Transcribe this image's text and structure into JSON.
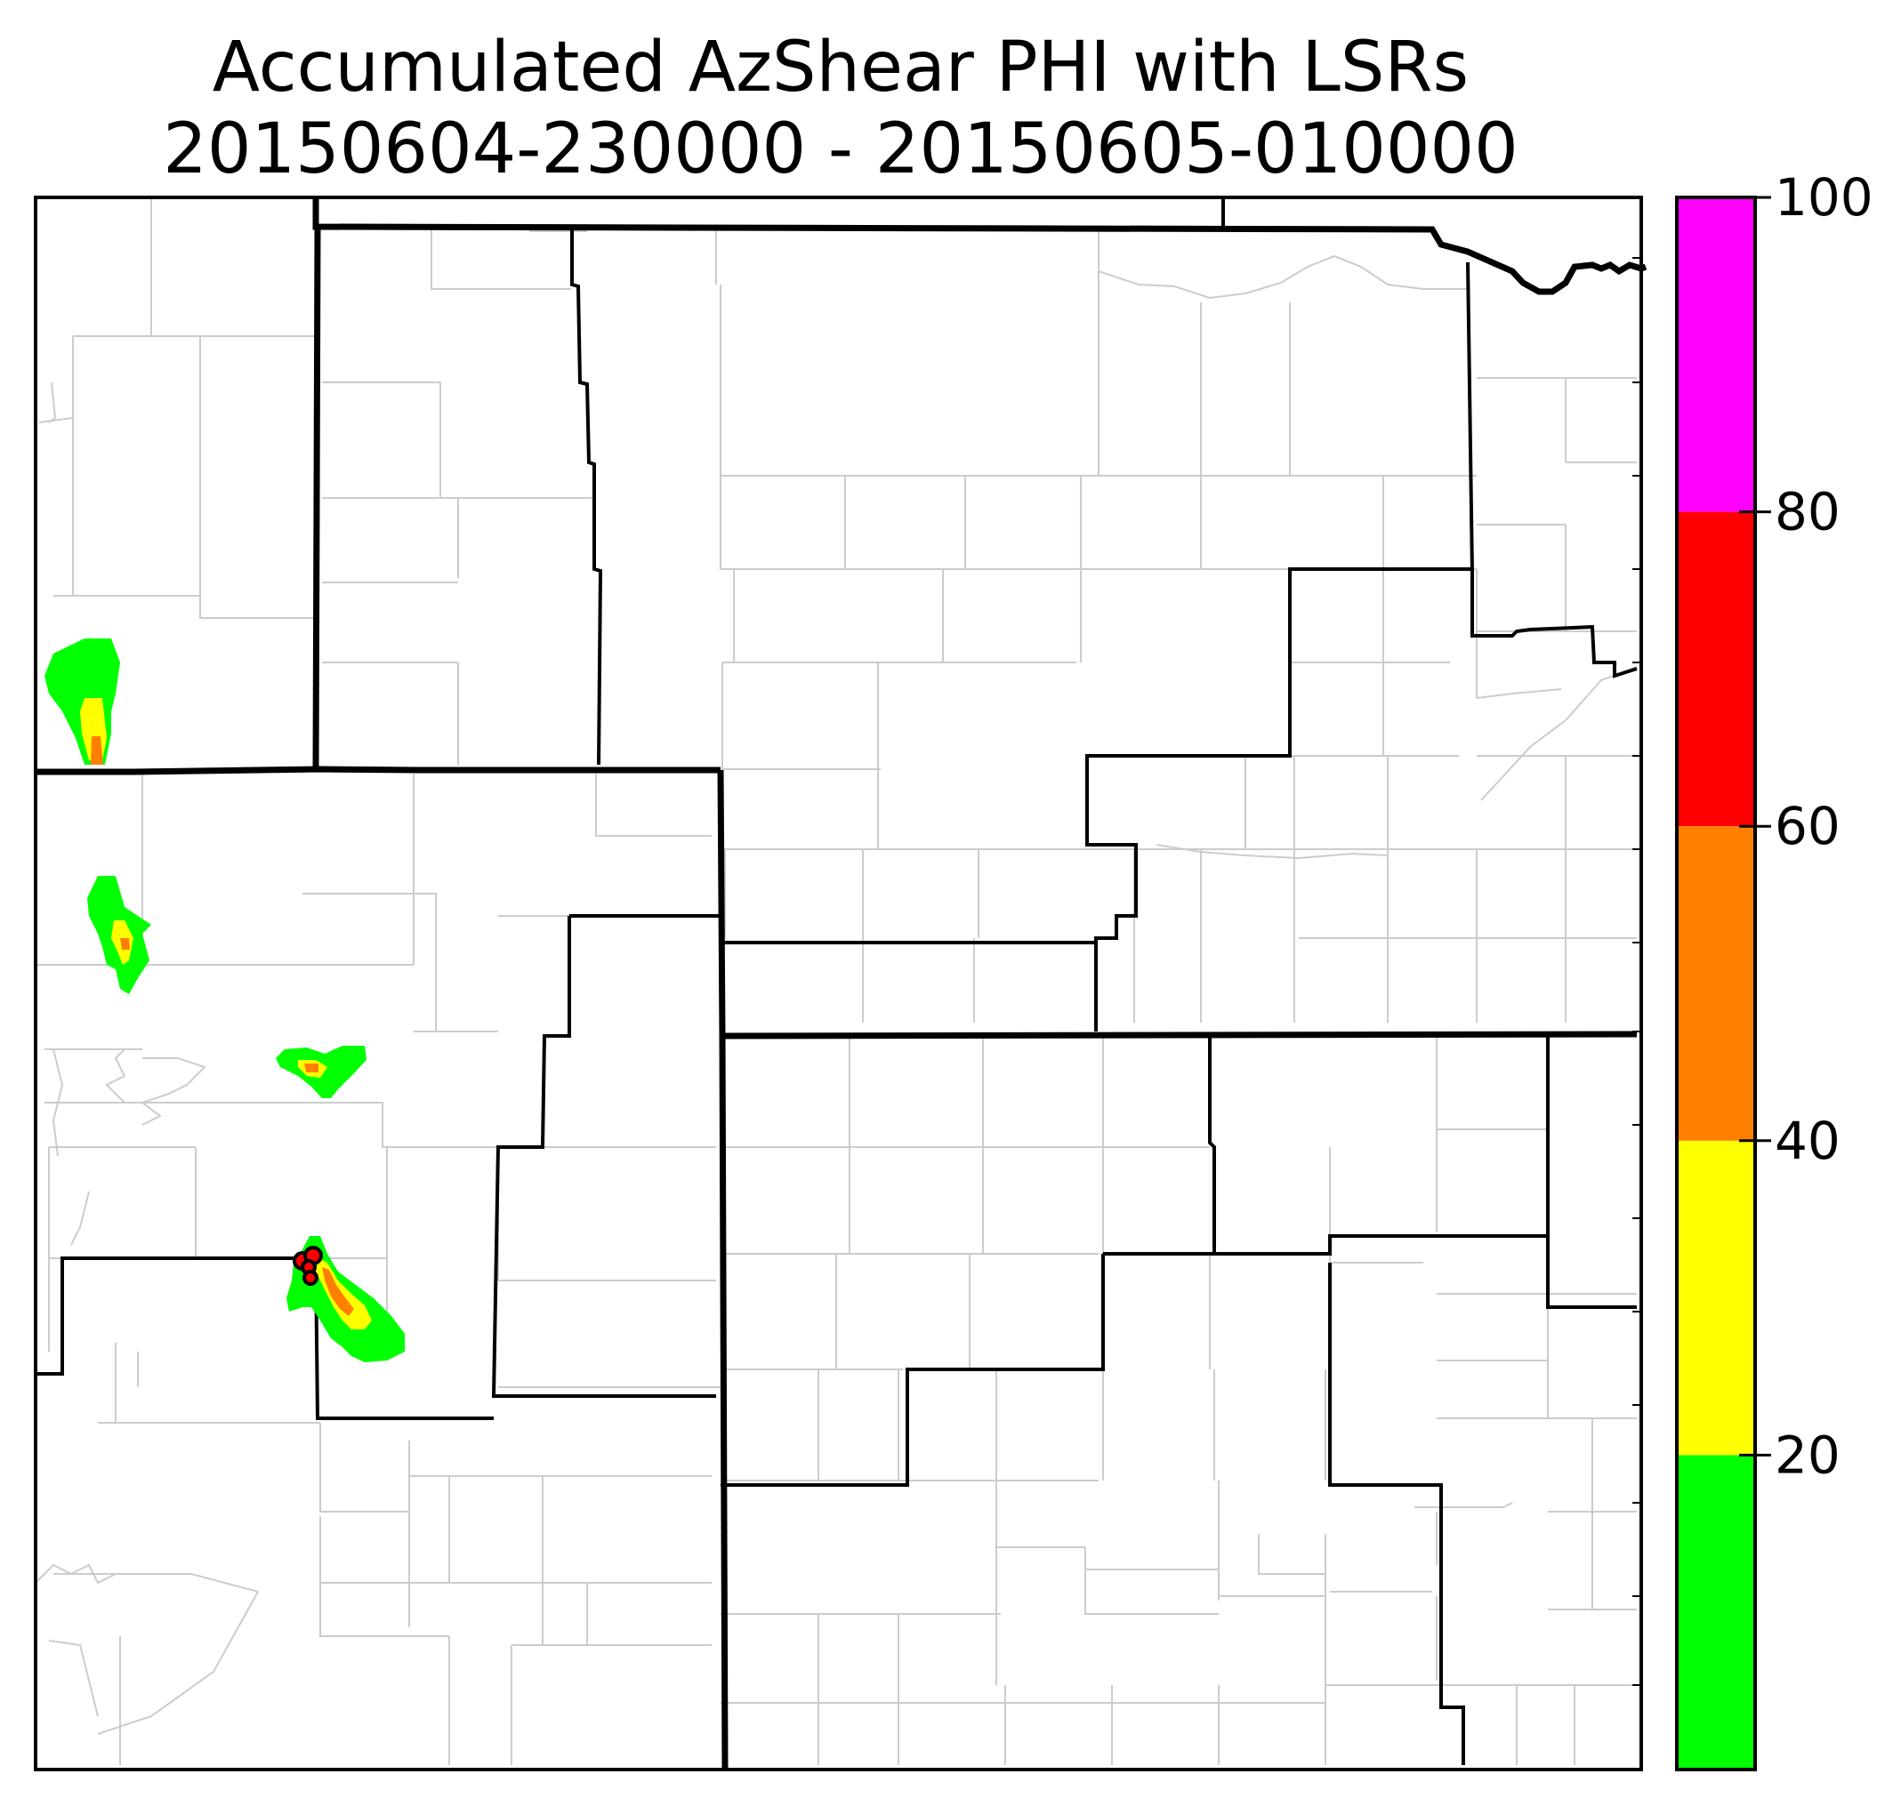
{
  "title": {
    "line1": "Accumulated AzShear PHI with LSRs",
    "line2": "20150604-230000 - 20150605-010000"
  },
  "colorbar": {
    "min": 0,
    "max": 100,
    "ticks": [
      "20",
      "40",
      "60",
      "80",
      "100"
    ],
    "bins": [
      {
        "from": 0,
        "to": 20,
        "color": "#00ff00"
      },
      {
        "from": 20,
        "to": 40,
        "color": "#ffff00"
      },
      {
        "from": 40,
        "to": 60,
        "color": "#ff8000"
      },
      {
        "from": 60,
        "to": 80,
        "color": "#ff0000"
      },
      {
        "from": 80,
        "to": 100,
        "color": "#ff00ff"
      }
    ]
  },
  "colors": {
    "county_lines": "#cccccc",
    "cwa_lines": "#000000",
    "lsr_marker": "#ff0000"
  },
  "layers": [
    "county-boundaries",
    "cwa-boundaries",
    "state-boundaries",
    "azshear-accumulation",
    "lsr-reports"
  ]
}
